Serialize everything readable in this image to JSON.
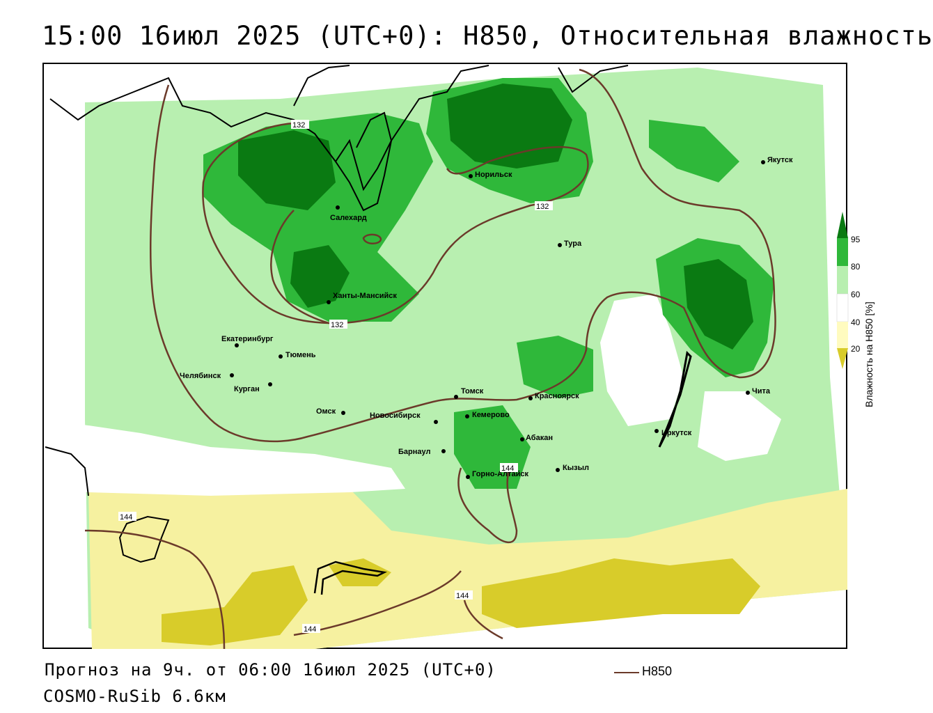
{
  "header": {
    "title": "15:00 16июл 2025 (UTC+0): H850, Относительная влажность"
  },
  "footer": {
    "forecast": "Прогноз на 9ч. от 06:00 16июл 2025 (UTC+0)",
    "model": "COSMO-RuSib 6.6км",
    "legend_label": "H850"
  },
  "colorbar": {
    "title": "Влажность на H850 [%]",
    "ticks": [
      "95",
      "80",
      "60",
      "40",
      "20"
    ],
    "colors": [
      "#0a7a12",
      "#2fb83a",
      "#b8efb0",
      "#ffffff",
      "#fffbbf",
      "#f3ee8a",
      "#d8cc2a"
    ]
  },
  "cities": [
    {
      "name": "Якутск"
    },
    {
      "name": "Норильск"
    },
    {
      "name": "Салехард"
    },
    {
      "name": "Тура"
    },
    {
      "name": "Ханты-Мансийск"
    },
    {
      "name": "Екатеринбург"
    },
    {
      "name": "Тюмень"
    },
    {
      "name": "Челябинск"
    },
    {
      "name": "Курган"
    },
    {
      "name": "Омск"
    },
    {
      "name": "Томск"
    },
    {
      "name": "Новосибирск"
    },
    {
      "name": "Кемерово"
    },
    {
      "name": "Красноярск"
    },
    {
      "name": "Абакан"
    },
    {
      "name": "Барнаул"
    },
    {
      "name": "Горно-Алтайск"
    },
    {
      "name": "Кызыл"
    },
    {
      "name": "Иркутск"
    },
    {
      "name": "Чита"
    }
  ],
  "contour_labels": [
    "132",
    "132",
    "132",
    "144",
    "144",
    "144",
    "144"
  ],
  "colors": {
    "contour": "#6b3a2a",
    "dark_green": "#0a7a12",
    "green": "#2fb83a",
    "light_green": "#b8efb0",
    "yellow": "#f6f1a0",
    "dark_yellow": "#d8cc2a"
  }
}
